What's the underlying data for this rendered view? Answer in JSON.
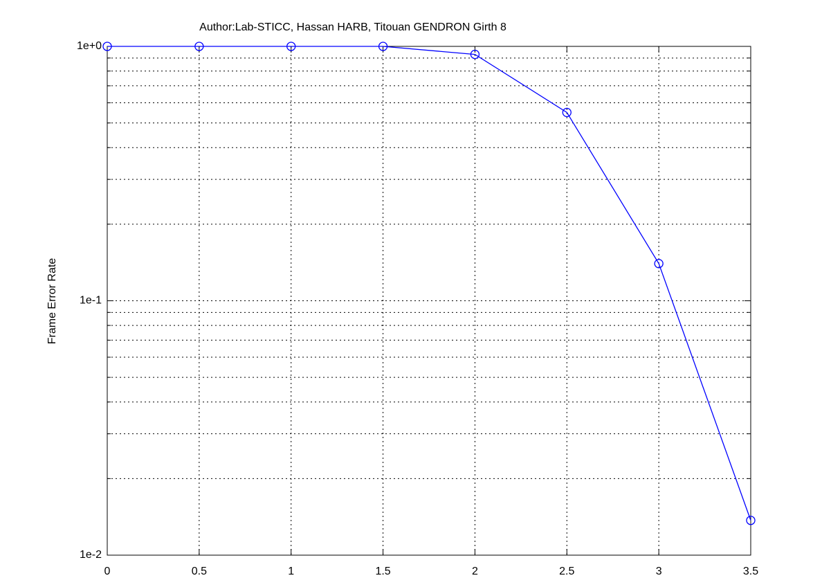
{
  "chart_data": {
    "type": "line",
    "title": "Author:Lab-STICC, Hassan HARB, Titouan GENDRON Girth 8",
    "y_label": "Frame Error Rate",
    "x": [
      0,
      0.5,
      1,
      1.5,
      2,
      2.5,
      3,
      3.5
    ],
    "series": [
      {
        "color": "#0000ff",
        "values": [
          1.0,
          1.0,
          1.0,
          1.0,
          0.93,
          0.55,
          0.14,
          0.0137
        ]
      }
    ],
    "xlim": [
      0,
      3.5
    ],
    "xticks": [
      0,
      0.5,
      1,
      1.5,
      2,
      2.5,
      3,
      3.5
    ],
    "ylim": [
      0.01,
      1
    ],
    "yticks": [
      {
        "value": 0.01,
        "label": "1e-2"
      },
      {
        "value": 0.1,
        "label": "1e-1"
      },
      {
        "value": 1,
        "label": "1e+0"
      }
    ],
    "yminor_ticks": [
      0.02,
      0.03,
      0.04,
      0.05,
      0.06,
      0.07,
      0.08,
      0.09,
      0.2,
      0.3,
      0.4,
      0.5,
      0.6,
      0.7,
      0.8,
      0.9
    ],
    "ylog": true,
    "grid": true
  }
}
